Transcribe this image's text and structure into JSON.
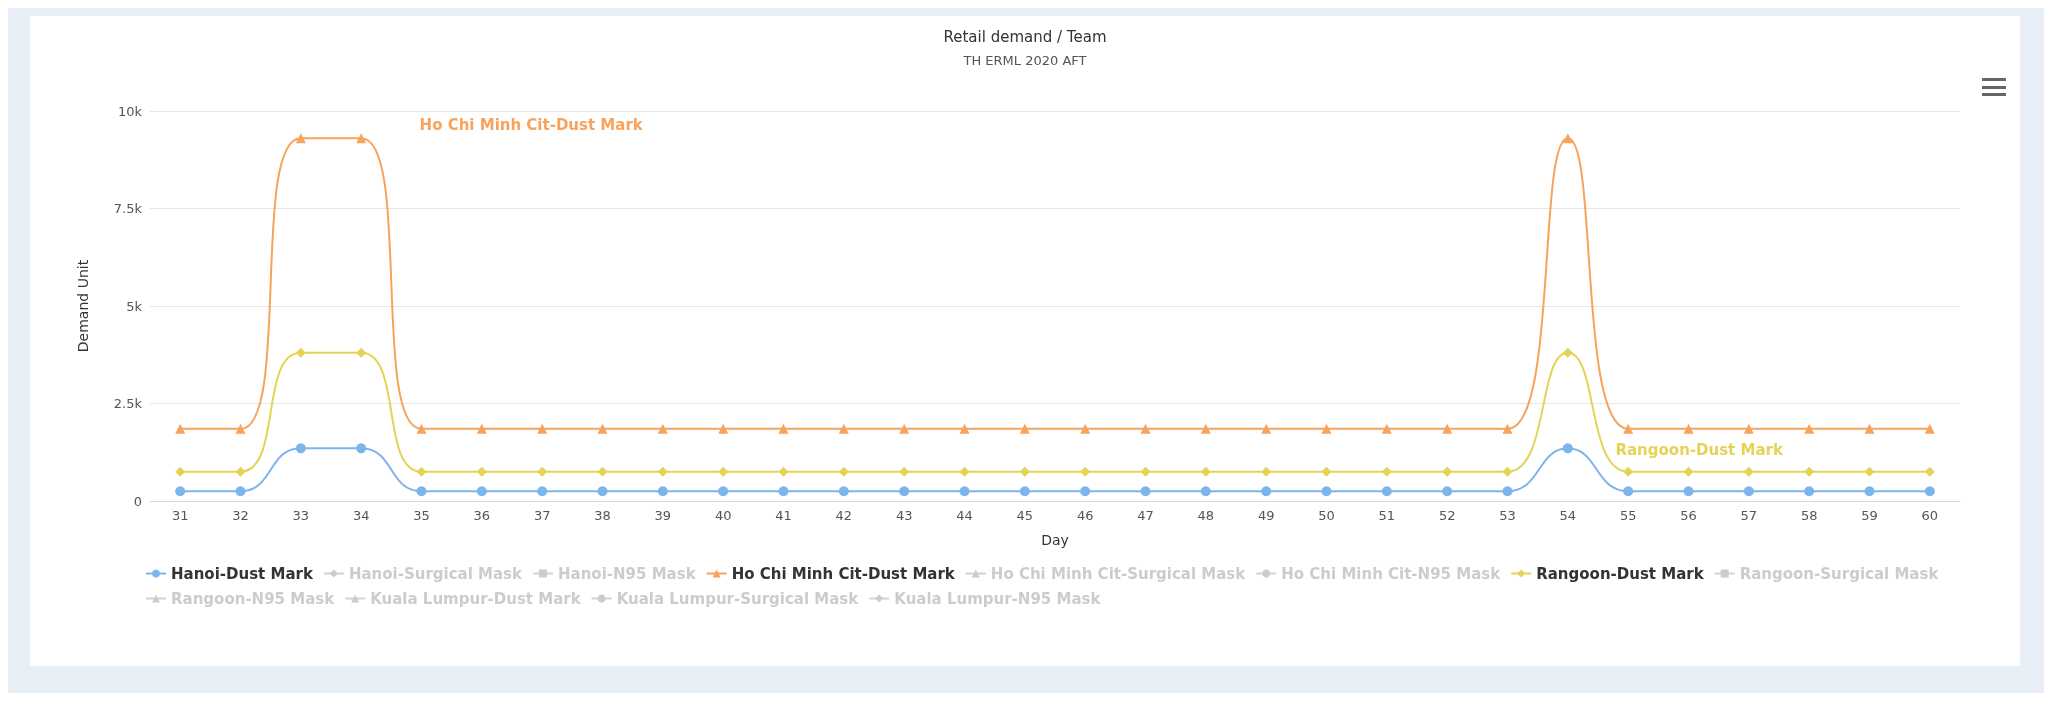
{
  "chart_data": {
    "type": "line",
    "title": "Retail demand / Team",
    "subtitle": "TH ERML 2020 AFT",
    "xlabel": "Day",
    "ylabel": "Demand Unit",
    "categories": [
      "31",
      "32",
      "33",
      "34",
      "35",
      "36",
      "37",
      "38",
      "39",
      "40",
      "41",
      "42",
      "43",
      "44",
      "45",
      "46",
      "47",
      "48",
      "49",
      "50",
      "51",
      "52",
      "53",
      "54",
      "55",
      "56",
      "57",
      "58",
      "59",
      "60"
    ],
    "ylim": [
      0,
      10000
    ],
    "yticks": [
      {
        "value": 0,
        "label": "0"
      },
      {
        "value": 2500,
        "label": "2.5k"
      },
      {
        "value": 5000,
        "label": "5k"
      },
      {
        "value": 7500,
        "label": "7.5k"
      },
      {
        "value": 10000,
        "label": "10k"
      }
    ],
    "grid": "y",
    "legend": "bottom",
    "series": [
      {
        "name": "Hanoi-Dust Mark",
        "color": "#7cb5ec",
        "marker": "circle",
        "values": [
          250,
          250,
          1350,
          1350,
          250,
          250,
          250,
          250,
          250,
          250,
          250,
          250,
          250,
          250,
          250,
          250,
          250,
          250,
          250,
          250,
          250,
          250,
          250,
          1350,
          250,
          250,
          250,
          250,
          250,
          250
        ]
      },
      {
        "name": "Hanoi-Surgical Mask",
        "color": "#cccccc",
        "marker": "diamond",
        "values": [
          null,
          null,
          null,
          null,
          null,
          null,
          null,
          null,
          null,
          null,
          null,
          null,
          null,
          null,
          null,
          null,
          null,
          null,
          null,
          null,
          null,
          null,
          null,
          null,
          null,
          null,
          null,
          null,
          null,
          null
        ]
      },
      {
        "name": "Hanoi-N95 Mask",
        "color": "#cccccc",
        "marker": "square",
        "values": [
          null,
          null,
          null,
          null,
          null,
          null,
          null,
          null,
          null,
          null,
          null,
          null,
          null,
          null,
          null,
          null,
          null,
          null,
          null,
          null,
          null,
          null,
          null,
          null,
          null,
          null,
          null,
          null,
          null,
          null
        ]
      },
      {
        "name": "Ho Chi Minh Cit-Dust Mark",
        "color": "#f7a35c",
        "marker": "triangle",
        "values": [
          1850,
          1850,
          9300,
          9300,
          1850,
          1850,
          1850,
          1850,
          1850,
          1850,
          1850,
          1850,
          1850,
          1850,
          1850,
          1850,
          1850,
          1850,
          1850,
          1850,
          1850,
          1850,
          1850,
          9300,
          1850,
          1850,
          1850,
          1850,
          1850,
          1850
        ]
      },
      {
        "name": "Ho Chi Minh Cit-Surgical Mask",
        "color": "#cccccc",
        "marker": "triangle",
        "values": [
          null,
          null,
          null,
          null,
          null,
          null,
          null,
          null,
          null,
          null,
          null,
          null,
          null,
          null,
          null,
          null,
          null,
          null,
          null,
          null,
          null,
          null,
          null,
          null,
          null,
          null,
          null,
          null,
          null,
          null
        ]
      },
      {
        "name": "Ho Chi Minh Cit-N95 Mask",
        "color": "#cccccc",
        "marker": "circle",
        "values": [
          null,
          null,
          null,
          null,
          null,
          null,
          null,
          null,
          null,
          null,
          null,
          null,
          null,
          null,
          null,
          null,
          null,
          null,
          null,
          null,
          null,
          null,
          null,
          null,
          null,
          null,
          null,
          null,
          null,
          null
        ]
      },
      {
        "name": "Rangoon-Dust Mark",
        "color": "#e4d354",
        "marker": "diamond",
        "values": [
          750,
          750,
          3800,
          3800,
          750,
          750,
          750,
          750,
          750,
          750,
          750,
          750,
          750,
          750,
          750,
          750,
          750,
          750,
          750,
          750,
          750,
          750,
          750,
          3800,
          750,
          750,
          750,
          750,
          750,
          750
        ]
      },
      {
        "name": "Rangoon-Surgical Mask",
        "color": "#cccccc",
        "marker": "square",
        "values": [
          null,
          null,
          null,
          null,
          null,
          null,
          null,
          null,
          null,
          null,
          null,
          null,
          null,
          null,
          null,
          null,
          null,
          null,
          null,
          null,
          null,
          null,
          null,
          null,
          null,
          null,
          null,
          null,
          null,
          null
        ]
      },
      {
        "name": "Rangoon-N95 Mask",
        "color": "#cccccc",
        "marker": "triangle",
        "values": [
          null,
          null,
          null,
          null,
          null,
          null,
          null,
          null,
          null,
          null,
          null,
          null,
          null,
          null,
          null,
          null,
          null,
          null,
          null,
          null,
          null,
          null,
          null,
          null,
          null,
          null,
          null,
          null,
          null,
          null
        ]
      },
      {
        "name": "Kuala Lumpur-Dust Mark",
        "color": "#cccccc",
        "marker": "triangle",
        "values": [
          null,
          null,
          null,
          null,
          null,
          null,
          null,
          null,
          null,
          null,
          null,
          null,
          null,
          null,
          null,
          null,
          null,
          null,
          null,
          null,
          null,
          null,
          null,
          null,
          null,
          null,
          null,
          null,
          null,
          null
        ]
      },
      {
        "name": "Kuala Lumpur-Surgical Mask",
        "color": "#cccccc",
        "marker": "circle",
        "values": [
          null,
          null,
          null,
          null,
          null,
          null,
          null,
          null,
          null,
          null,
          null,
          null,
          null,
          null,
          null,
          null,
          null,
          null,
          null,
          null,
          null,
          null,
          null,
          null,
          null,
          null,
          null,
          null,
          null,
          null
        ]
      },
      {
        "name": "Kuala Lumpur-N95 Mask",
        "color": "#cccccc",
        "marker": "diamond",
        "values": [
          null,
          null,
          null,
          null,
          null,
          null,
          null,
          null,
          null,
          null,
          null,
          null,
          null,
          null,
          null,
          null,
          null,
          null,
          null,
          null,
          null,
          null,
          null,
          null,
          null,
          null,
          null,
          null,
          null,
          null
        ]
      }
    ]
  }
}
